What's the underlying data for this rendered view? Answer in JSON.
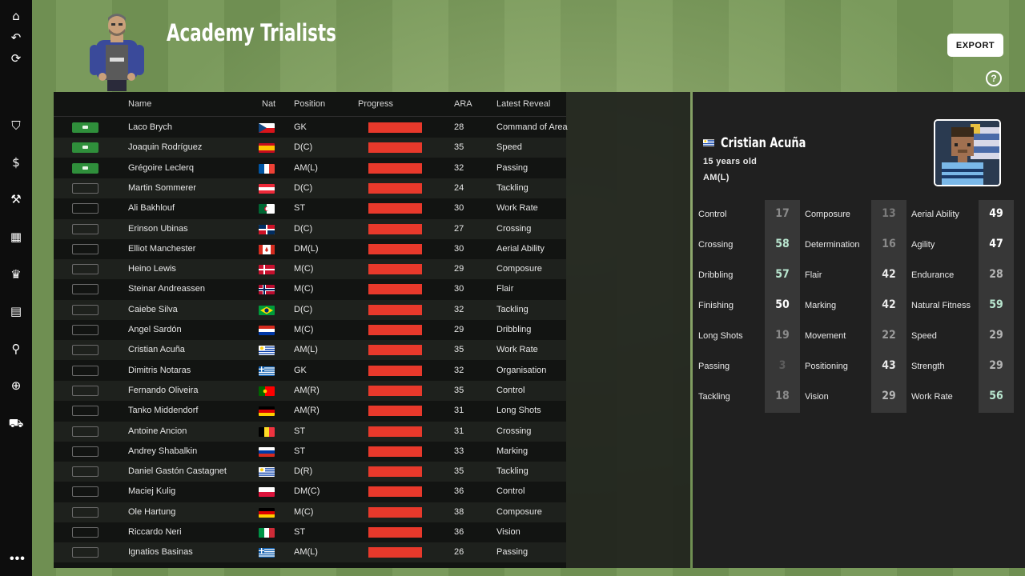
{
  "page": {
    "title": "Academy Trialists"
  },
  "toolbar": {
    "export_label": "EXPORT",
    "help_label": "?"
  },
  "sidebar": {
    "items": [
      {
        "icon": "home-icon",
        "glyph": "⌂"
      },
      {
        "icon": "back-icon",
        "glyph": "↶"
      },
      {
        "icon": "refresh-icon",
        "glyph": "⟳"
      },
      {
        "icon": "shield-icon",
        "glyph": "⛉"
      },
      {
        "icon": "finance-icon",
        "glyph": "$"
      },
      {
        "icon": "training-icon",
        "glyph": "⚒"
      },
      {
        "icon": "tactics-icon",
        "glyph": "▦"
      },
      {
        "icon": "trophy-icon",
        "glyph": "♛"
      },
      {
        "icon": "calendar-icon",
        "glyph": "▤"
      },
      {
        "icon": "search-icon",
        "glyph": "⚲"
      },
      {
        "icon": "globe-icon",
        "glyph": "⊕"
      },
      {
        "icon": "cart-icon",
        "glyph": "⛟"
      }
    ],
    "more": "•••"
  },
  "table": {
    "headers": {
      "name": "Name",
      "nat": "Nat",
      "position": "Position",
      "progress": "Progress",
      "ara": "ARA",
      "latest": "Latest Reveal"
    },
    "rows": [
      {
        "shortlisted": true,
        "name": "Laco Brych",
        "flag": "cz",
        "position": "GK",
        "progress": 1,
        "ara": "28",
        "latest": "Command of Area"
      },
      {
        "shortlisted": true,
        "name": "Joaquin Rodríguez",
        "flag": "es",
        "position": "D(C)",
        "progress": 1,
        "ara": "35",
        "latest": "Speed"
      },
      {
        "shortlisted": true,
        "name": "Grégoire Leclerq",
        "flag": "fr",
        "position": "AM(L)",
        "progress": 1,
        "ara": "32",
        "latest": "Passing"
      },
      {
        "shortlisted": false,
        "name": "Martin Sommerer",
        "flag": "at",
        "position": "D(C)",
        "progress": 1,
        "ara": "24",
        "latest": "Tackling"
      },
      {
        "shortlisted": false,
        "name": "Ali Bakhlouf",
        "flag": "dz",
        "position": "ST",
        "progress": 1,
        "ara": "30",
        "latest": "Work Rate"
      },
      {
        "shortlisted": false,
        "name": "Erinson Ubinas",
        "flag": "do",
        "position": "D(C)",
        "progress": 1,
        "ara": "27",
        "latest": "Crossing"
      },
      {
        "shortlisted": false,
        "name": "Elliot Manchester",
        "flag": "ca",
        "position": "DM(L)",
        "progress": 1,
        "ara": "30",
        "latest": "Aerial Ability"
      },
      {
        "shortlisted": false,
        "name": "Heino Lewis",
        "flag": "dk",
        "position": "M(C)",
        "progress": 1,
        "ara": "29",
        "latest": "Composure"
      },
      {
        "shortlisted": false,
        "name": "Steinar Andreassen",
        "flag": "no",
        "position": "M(C)",
        "progress": 1,
        "ara": "30",
        "latest": "Flair"
      },
      {
        "shortlisted": false,
        "name": "Caiebe Silva",
        "flag": "br",
        "position": "D(C)",
        "progress": 1,
        "ara": "32",
        "latest": "Tackling"
      },
      {
        "shortlisted": false,
        "name": "Angel Sardón",
        "flag": "py",
        "position": "M(C)",
        "progress": 1,
        "ara": "29",
        "latest": "Dribbling"
      },
      {
        "shortlisted": false,
        "name": "Cristian Acuña",
        "flag": "uy",
        "position": "AM(L)",
        "progress": 1,
        "ara": "35",
        "latest": "Work Rate"
      },
      {
        "shortlisted": false,
        "name": "Dimitris Notaras",
        "flag": "gr",
        "position": "GK",
        "progress": 1,
        "ara": "32",
        "latest": "Organisation"
      },
      {
        "shortlisted": false,
        "name": "Fernando Oliveira",
        "flag": "pt",
        "position": "AM(R)",
        "progress": 1,
        "ara": "35",
        "latest": "Control"
      },
      {
        "shortlisted": false,
        "name": "Tanko Middendorf",
        "flag": "de",
        "position": "AM(R)",
        "progress": 1,
        "ara": "31",
        "latest": "Long Shots"
      },
      {
        "shortlisted": false,
        "name": "Antoine Ancion",
        "flag": "be",
        "position": "ST",
        "progress": 1,
        "ara": "31",
        "latest": "Crossing"
      },
      {
        "shortlisted": false,
        "name": "Andrey Shabalkin",
        "flag": "ru",
        "position": "ST",
        "progress": 1,
        "ara": "33",
        "latest": "Marking"
      },
      {
        "shortlisted": false,
        "name": "Daniel Gastón Castagnet",
        "flag": "uy",
        "position": "D(R)",
        "progress": 1,
        "ara": "35",
        "latest": "Tackling"
      },
      {
        "shortlisted": false,
        "name": "Maciej Kulig",
        "flag": "pl",
        "position": "DM(C)",
        "progress": 1,
        "ara": "36",
        "latest": "Control"
      },
      {
        "shortlisted": false,
        "name": "Ole Hartung",
        "flag": "de",
        "position": "M(C)",
        "progress": 1,
        "ara": "38",
        "latest": "Composure"
      },
      {
        "shortlisted": false,
        "name": "Riccardo Neri",
        "flag": "it",
        "position": "ST",
        "progress": 1,
        "ara": "36",
        "latest": "Vision"
      },
      {
        "shortlisted": false,
        "name": "Ignatios Basinas",
        "flag": "gr",
        "position": "AM(L)",
        "progress": 1,
        "ara": "26",
        "latest": "Passing"
      }
    ]
  },
  "player": {
    "name": "Cristian Acuña",
    "flag": "uy",
    "age": "15 years old",
    "position": "AM(L)",
    "attributes": [
      [
        {
          "label": "Control",
          "value": "17",
          "color": "#8a8a8a"
        },
        {
          "label": "Crossing",
          "value": "58",
          "color": "#b9e6cf"
        },
        {
          "label": "Dribbling",
          "value": "57",
          "color": "#b9e6cf"
        },
        {
          "label": "Finishing",
          "value": "50",
          "color": "#ffffff"
        },
        {
          "label": "Long Shots",
          "value": "19",
          "color": "#8a8a8a"
        },
        {
          "label": "Passing",
          "value": "3",
          "color": "#5c5c5c"
        },
        {
          "label": "Tackling",
          "value": "18",
          "color": "#8a8a8a"
        }
      ],
      [
        {
          "label": "Composure",
          "value": "13",
          "color": "#7a7a7a"
        },
        {
          "label": "Determination",
          "value": "16",
          "color": "#8a8a8a"
        },
        {
          "label": "Flair",
          "value": "42",
          "color": "#e8e8e8"
        },
        {
          "label": "Marking",
          "value": "42",
          "color": "#e8e8e8"
        },
        {
          "label": "Movement",
          "value": "22",
          "color": "#9a9a9a"
        },
        {
          "label": "Positioning",
          "value": "43",
          "color": "#e8e8e8"
        },
        {
          "label": "Vision",
          "value": "29",
          "color": "#b4b4b4"
        }
      ],
      [
        {
          "label": "Aerial Ability",
          "value": "49",
          "color": "#ffffff"
        },
        {
          "label": "Agility",
          "value": "47",
          "color": "#ffffff"
        },
        {
          "label": "Endurance",
          "value": "28",
          "color": "#b4b4b4"
        },
        {
          "label": "Natural Fitness",
          "value": "59",
          "color": "#b9e6cf"
        },
        {
          "label": "Speed",
          "value": "29",
          "color": "#b4b4b4"
        },
        {
          "label": "Strength",
          "value": "29",
          "color": "#b4b4b4"
        },
        {
          "label": "Work Rate",
          "value": "56",
          "color": "#b9e6cf"
        }
      ]
    ]
  },
  "colors": {
    "progress": "#e8392b",
    "shortlist_on": "#2f8f3b",
    "panel": "#202020"
  }
}
